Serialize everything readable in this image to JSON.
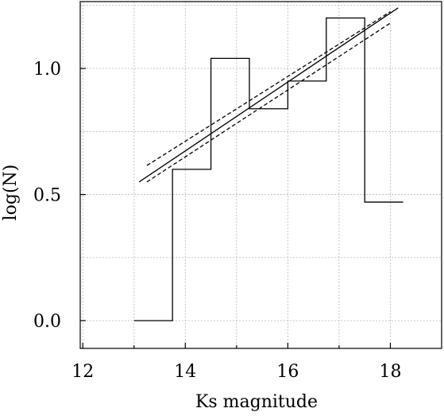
{
  "chart_data": {
    "type": "line",
    "title": "",
    "xlabel": "Ks magnitude",
    "ylabel": "log(N)",
    "xlim": [
      11.95,
      19.0
    ],
    "ylim": [
      -0.11,
      1.265
    ],
    "xticks": [
      12,
      14,
      16,
      18
    ],
    "yticks": [
      0.0,
      0.5,
      1.0
    ],
    "ytick_labels": [
      "0.0",
      "0.5",
      "1.0"
    ],
    "minor_xticks": [
      13,
      15,
      17,
      19
    ],
    "grid": true,
    "series": [
      {
        "kind": "histogram-step",
        "style": "solid",
        "bins": [
          {
            "x0": 13.0,
            "x1": 13.75,
            "y": 0.0
          },
          {
            "x0": 13.75,
            "x1": 14.5,
            "y": 0.6
          },
          {
            "x0": 14.5,
            "x1": 15.25,
            "y": 1.04
          },
          {
            "x0": 15.25,
            "x1": 16.0,
            "y": 0.84
          },
          {
            "x0": 16.0,
            "x1": 16.75,
            "y": 0.95
          },
          {
            "x0": 16.75,
            "x1": 17.5,
            "y": 1.2
          },
          {
            "x0": 17.5,
            "x1": 18.25,
            "y": 0.47
          }
        ]
      },
      {
        "kind": "fit",
        "style": "solid",
        "x": [
          13.1,
          18.15
        ],
        "y": [
          0.55,
          1.24
        ]
      },
      {
        "kind": "fit-upper",
        "style": "dashed",
        "x": [
          13.25,
          18.0
        ],
        "y": [
          0.615,
          1.225
        ]
      },
      {
        "kind": "fit-lower",
        "style": "dashed",
        "x": [
          13.25,
          18.0
        ],
        "y": [
          0.55,
          1.18
        ]
      }
    ]
  }
}
